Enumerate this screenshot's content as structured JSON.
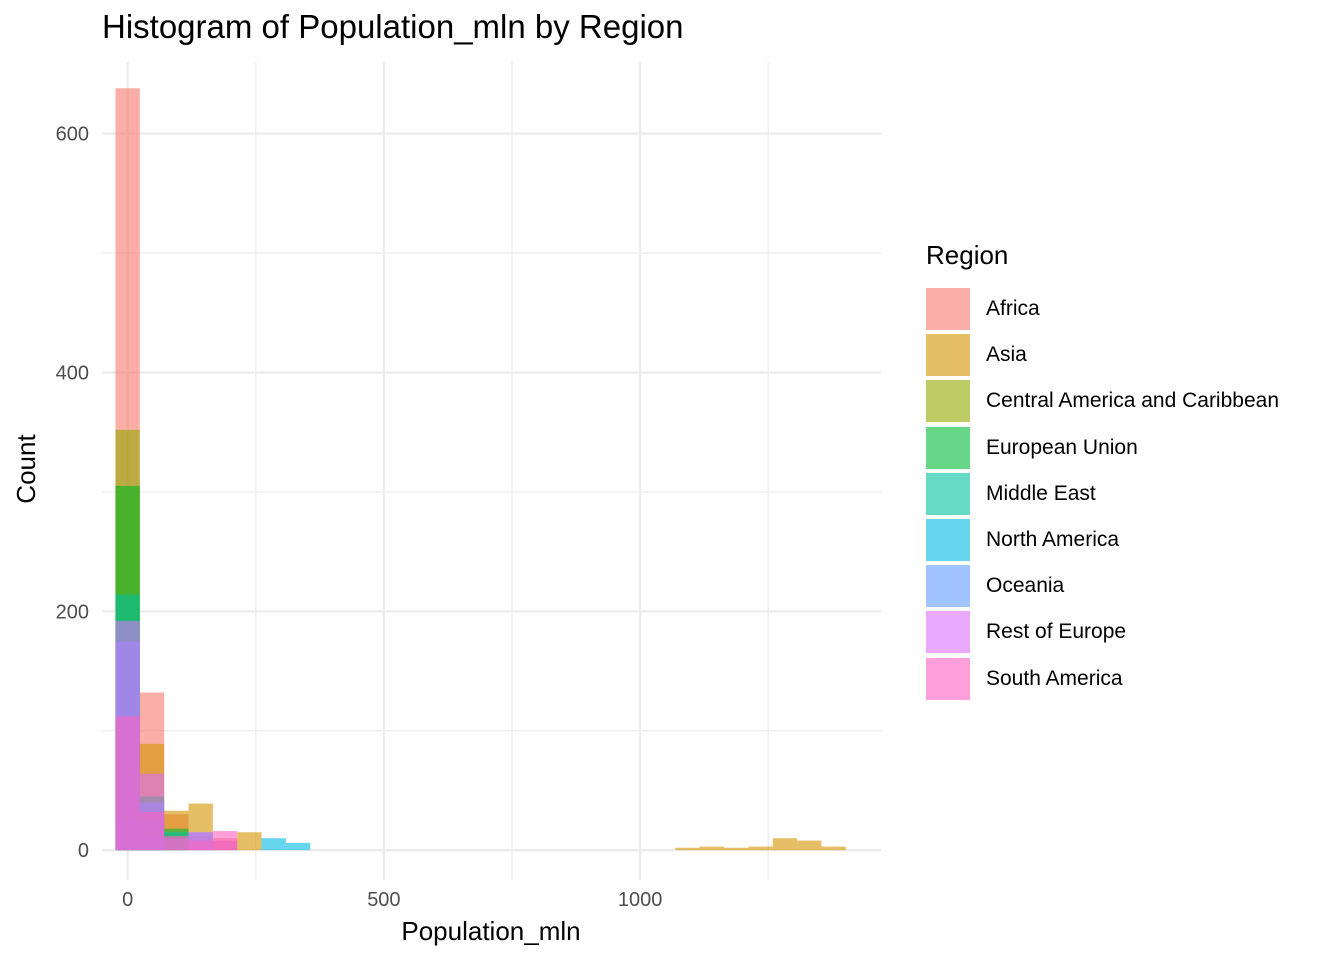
{
  "chart_data": {
    "type": "bar",
    "subtype": "overlaid-histogram",
    "title": "Histogram of Population_mln by Region",
    "xlabel": "Population_mln",
    "ylabel": "Count",
    "xlim": [
      -50,
      1470
    ],
    "ylim": [
      -25,
      660
    ],
    "x_ticks": [
      0,
      500,
      1000
    ],
    "y_ticks": [
      0,
      200,
      400,
      600
    ],
    "grid": true,
    "legend_position": "right",
    "legend_title": "Region",
    "bin_width": 47.5,
    "bin_centers": [
      0,
      47.5,
      95,
      142.5,
      190,
      237.5,
      285,
      332.5,
      1092.5,
      1140,
      1187.5,
      1235,
      1282.5,
      1330,
      1377.5
    ],
    "series": [
      {
        "name": "Africa",
        "color": "#F8766D",
        "counts": [
          638,
          132,
          30,
          12,
          10,
          0,
          0,
          0,
          0,
          0,
          0,
          0,
          0,
          0,
          0
        ]
      },
      {
        "name": "Asia",
        "color": "#D39200",
        "counts": [
          305,
          89,
          33,
          39,
          8,
          15,
          0,
          0,
          2,
          3,
          2,
          3,
          10,
          8,
          3
        ]
      },
      {
        "name": "Central America and Caribbean",
        "color": "#93AA00",
        "counts": [
          352,
          20,
          0,
          0,
          0,
          0,
          0,
          0,
          0,
          0,
          0,
          0,
          0,
          0,
          0
        ]
      },
      {
        "name": "European Union",
        "color": "#00BA38",
        "counts": [
          305,
          45,
          18,
          0,
          0,
          0,
          0,
          0,
          0,
          0,
          0,
          0,
          0,
          0,
          0
        ]
      },
      {
        "name": "Middle East",
        "color": "#00C19F",
        "counts": [
          214,
          25,
          15,
          0,
          0,
          0,
          0,
          0,
          0,
          0,
          0,
          0,
          0,
          0,
          0
        ]
      },
      {
        "name": "North America",
        "color": "#00B9E3",
        "counts": [
          25,
          10,
          0,
          0,
          0,
          0,
          10,
          6,
          0,
          0,
          0,
          0,
          0,
          0,
          0
        ]
      },
      {
        "name": "Oceania",
        "color": "#619CFF",
        "counts": [
          175,
          40,
          0,
          15,
          0,
          0,
          0,
          0,
          0,
          0,
          0,
          0,
          0,
          0,
          0
        ]
      },
      {
        "name": "Rest of Europe",
        "color": "#DB72FB",
        "counts": [
          192,
          64,
          10,
          15,
          8,
          0,
          0,
          0,
          0,
          0,
          0,
          0,
          0,
          0,
          0
        ]
      },
      {
        "name": "South America",
        "color": "#FF61C3",
        "counts": [
          112,
          32,
          12,
          8,
          16,
          0,
          0,
          0,
          0,
          0,
          0,
          0,
          0,
          0,
          0
        ]
      }
    ]
  }
}
